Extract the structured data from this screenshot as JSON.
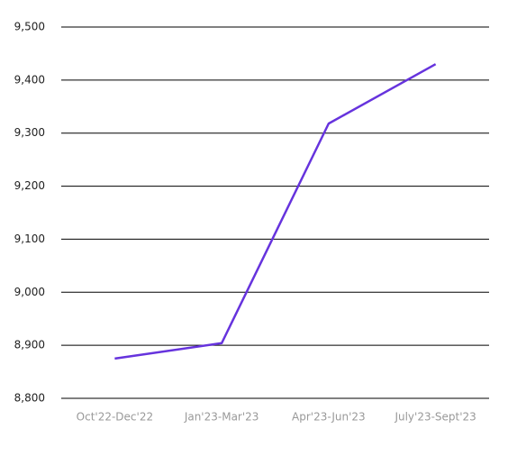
{
  "chart_data": {
    "type": "line",
    "categories": [
      "Oct'22-Dec'22",
      "Jan'23-Mar'23",
      "Apr'23-Jun'23",
      "July'23-Sept'23"
    ],
    "series": [
      {
        "color": "#6633dd",
        "values": [
          8875,
          8904,
          9318,
          9430
        ]
      }
    ],
    "ylim": [
      8800,
      9500
    ],
    "yticks": [
      {
        "value": 8800,
        "label": "8,800"
      },
      {
        "value": 8900,
        "label": "8,900"
      },
      {
        "value": 9000,
        "label": "9,000"
      },
      {
        "value": 9100,
        "label": "9,100"
      },
      {
        "value": 9200,
        "label": "9,200"
      },
      {
        "value": 9300,
        "label": "9,300"
      },
      {
        "value": 9400,
        "label": "9,400"
      },
      {
        "value": 9500,
        "label": "9,500"
      }
    ],
    "grid": true
  }
}
